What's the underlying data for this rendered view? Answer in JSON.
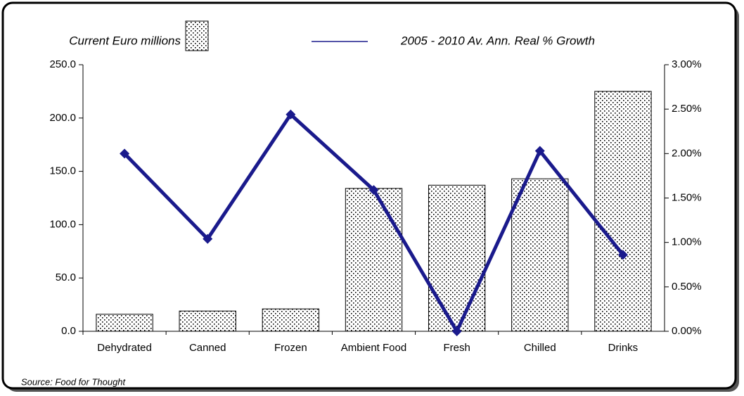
{
  "chart_data": {
    "type": "bar-line",
    "categories": [
      "Dehydrated",
      "Canned",
      "Frozen",
      "Ambient  Food",
      "Fresh",
      "Chilled",
      "Drinks"
    ],
    "series": [
      {
        "name": "Current Euro millions",
        "type": "bar",
        "color": "#000000",
        "values": [
          16,
          19,
          21,
          134,
          137,
          143,
          225
        ]
      },
      {
        "name": "2005 - 2010 Av. Ann. Real % Growth",
        "type": "line",
        "axis": "y2",
        "color": "#1a1a8c",
        "values": [
          2.0,
          1.04,
          2.44,
          1.59,
          0,
          2.03,
          0.86
        ]
      }
    ],
    "ylim": [
      0,
      250
    ],
    "yticks": [
      {
        "value": 0,
        "label": "0.0"
      },
      {
        "value": 50,
        "label": "50.0"
      },
      {
        "value": 100,
        "label": "100.0"
      },
      {
        "value": 150,
        "label": "150.0"
      },
      {
        "value": 200,
        "label": "200.0"
      },
      {
        "value": 250,
        "label": "250.0"
      }
    ],
    "y2lim": [
      0,
      3
    ],
    "y2ticks": [
      {
        "value": 0,
        "label": "0.00%"
      },
      {
        "value": 0.5,
        "label": "0.50%"
      },
      {
        "value": 1,
        "label": "1.00%"
      },
      {
        "value": 1.5,
        "label": "1.50%"
      },
      {
        "value": 2,
        "label": "2.00%"
      },
      {
        "value": 2.5,
        "label": "2.50%"
      },
      {
        "value": 3,
        "label": "3.00%"
      }
    ],
    "source": "Source: Food for Thought"
  }
}
